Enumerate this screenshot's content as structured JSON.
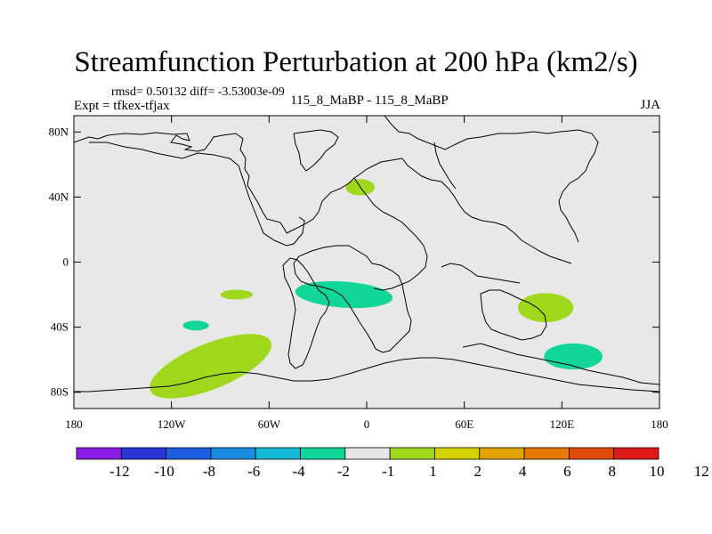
{
  "header": {
    "title": "Streamfunction Perturbation at 200 hPa (km2/s)",
    "stats": "rmsd= 0.50132 diff= -3.53003e-09",
    "experiment": "Expt = tfkex-tfjax",
    "center": "115_8_MaBP - 115_8_MaBP",
    "season": "JJA"
  },
  "map": {
    "background_color": "#e8e8e8",
    "coastline_color": "#000000",
    "lon_range": [
      -180,
      180
    ],
    "lat_range": [
      -90,
      90
    ],
    "lon_ticks": [
      {
        "value": -180,
        "label": "180"
      },
      {
        "value": -120,
        "label": "120W"
      },
      {
        "value": -60,
        "label": "60W"
      },
      {
        "value": 0,
        "label": "0"
      },
      {
        "value": 60,
        "label": "60E"
      },
      {
        "value": 120,
        "label": "120E"
      },
      {
        "value": 180,
        "label": "180"
      }
    ],
    "lat_ticks": [
      {
        "value": 80,
        "label": "80N"
      },
      {
        "value": 40,
        "label": "40N"
      },
      {
        "value": 0,
        "label": "0"
      },
      {
        "value": -40,
        "label": "40S"
      },
      {
        "value": -80,
        "label": "80S"
      }
    ],
    "shaded_regions": [
      {
        "name": "north-atlantic-positive",
        "level": "1 to 2",
        "color": "#a0d81e",
        "center": [
          -4,
          46
        ],
        "radius": [
          9,
          5
        ]
      },
      {
        "name": "south-pacific-positive-small",
        "level": "1 to 2",
        "color": "#a0d81e",
        "center": [
          -80,
          -20
        ],
        "radius": [
          10,
          3
        ]
      },
      {
        "name": "south-pacific-negative-small",
        "level": "-2 to -1",
        "color": "#10d69a",
        "center": [
          -105,
          -39
        ],
        "radius": [
          8,
          3
        ]
      },
      {
        "name": "south-atlantic-negative",
        "level": "-2 to -1",
        "color": "#10d69a",
        "center": [
          -14,
          -20
        ],
        "radius": [
          30,
          8
        ]
      },
      {
        "name": "indian-ocean-positive",
        "level": "1 to 2",
        "color": "#a0d81e",
        "center": [
          110,
          -28
        ],
        "radius": [
          17,
          9
        ]
      },
      {
        "name": "southern-ocean-negative",
        "level": "-2 to -1",
        "color": "#10d69a",
        "center": [
          127,
          -58
        ],
        "radius": [
          18,
          8
        ]
      },
      {
        "name": "southern-pacific-positive-large",
        "level": "1 to 2",
        "color": "#a0d81e",
        "center": [
          -96,
          -64
        ],
        "radius": [
          40,
          14
        ]
      }
    ]
  },
  "colorbar": {
    "colors": [
      "#8a1ee6",
      "#2a35d8",
      "#1d5ee0",
      "#1b8be0",
      "#16b8d8",
      "#10d69a",
      "#e6e6e6",
      "#a0d81e",
      "#d6d400",
      "#e0a300",
      "#e67a00",
      "#e04a0a",
      "#e01a1a"
    ],
    "labels": [
      "-12",
      "-10",
      "-8",
      "-6",
      "-4",
      "-2",
      "-1",
      "1",
      "2",
      "4",
      "6",
      "8",
      "10",
      "12"
    ]
  }
}
